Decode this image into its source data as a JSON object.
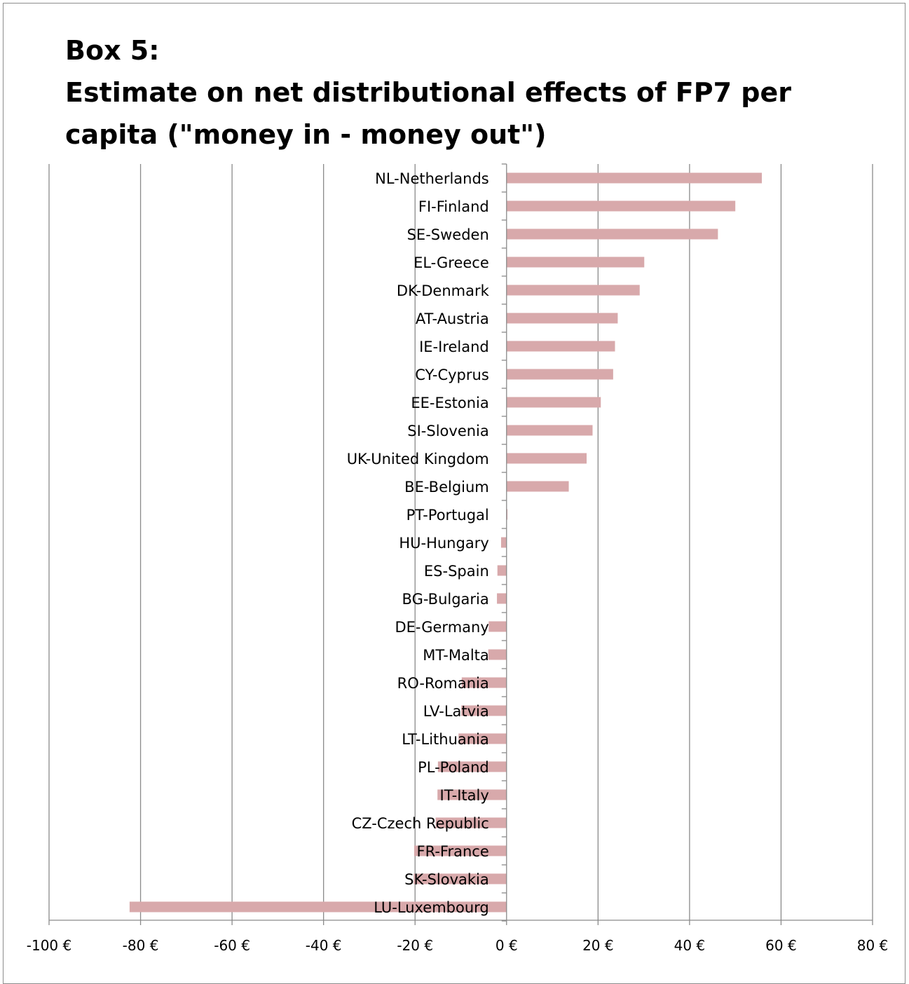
{
  "title_lines": [
    "Box 5:",
    "Estimate on net distributional effects of FP7 per",
    "capita (\"money in - money out\")"
  ],
  "chart_data": {
    "type": "bar",
    "orientation": "horizontal",
    "title": "Box 5: Estimate on net distributional effects of FP7 per capita (\"money in - money out\")",
    "xlabel": "",
    "ylabel": "",
    "xlim": [
      -100,
      80
    ],
    "x_ticks": [
      -100,
      -80,
      -60,
      -40,
      -20,
      0,
      20,
      40,
      60,
      80
    ],
    "x_tick_labels": [
      "-100 €",
      "-80 €",
      "-60 €",
      "-40 €",
      "-20 €",
      "0 €",
      "20 €",
      "40 €",
      "60 €",
      "80 €"
    ],
    "grid": "vertical",
    "legend": "none",
    "bar_color": "#d8a9ab",
    "categories": [
      "NL-Netherlands",
      "FI-Finland",
      "SE-Sweden",
      "EL-Greece",
      "DK-Denmark",
      "AT-Austria",
      "IE-Ireland",
      "CY-Cyprus",
      "EE-Estonia",
      "SI-Slovenia",
      "UK-United Kingdom",
      "BE-Belgium",
      "PT-Portugal",
      "HU-Hungary",
      "ES-Spain",
      "BG-Bulgaria",
      "DE-Germany",
      "MT-Malta",
      "RO-Romania",
      "LV-Latvia",
      "LT-Lithuania",
      "PL-Poland",
      "IT-Italy",
      "CZ-Czech Republic",
      "FR-France",
      "SK-Slovakia",
      "LU-Luxembourg"
    ],
    "values": [
      55.8,
      50.0,
      46.2,
      30.1,
      29.1,
      24.3,
      23.7,
      23.3,
      20.6,
      18.8,
      17.5,
      13.6,
      0.2,
      -1.2,
      -2.0,
      -2.1,
      -3.9,
      -4.0,
      -9.8,
      -9.9,
      -10.5,
      -15.0,
      -15.1,
      -15.5,
      -20.2,
      -20.3,
      -82.4
    ]
  }
}
